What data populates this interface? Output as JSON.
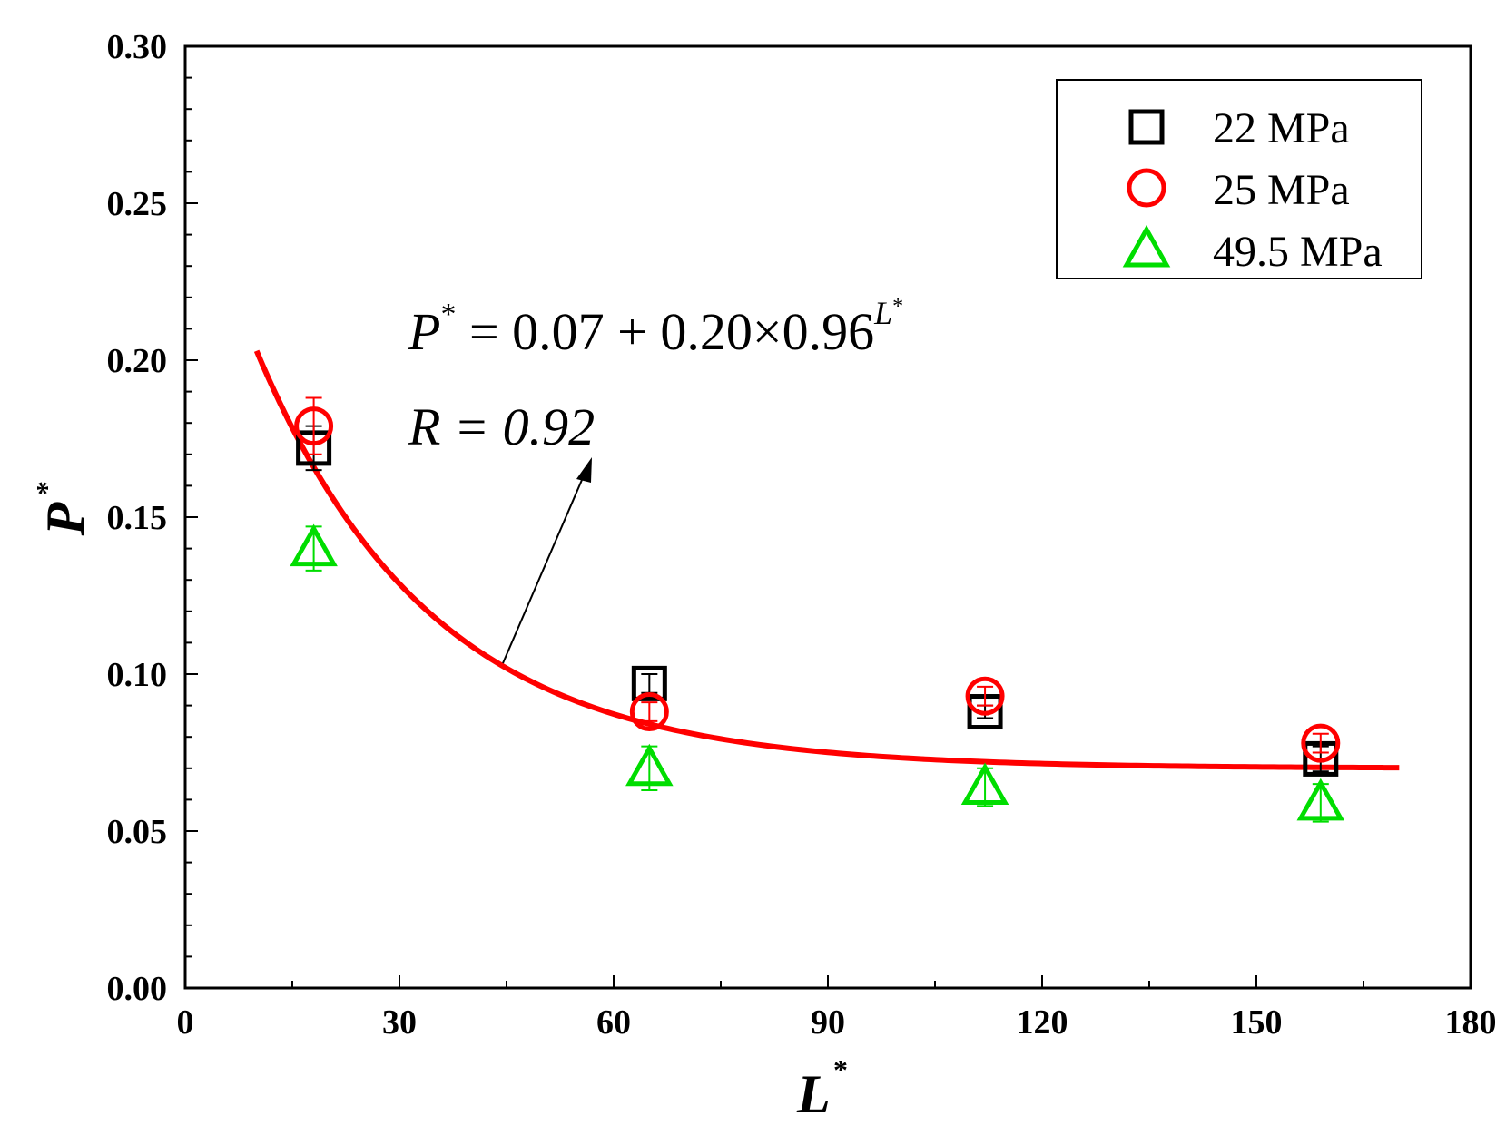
{
  "chart_data": {
    "type": "scatter",
    "xlabel": "L",
    "xlabel_sup": "*",
    "ylabel": "P",
    "ylabel_sup": "*",
    "xlim": [
      0,
      180
    ],
    "ylim": [
      0,
      0.3
    ],
    "x_ticks": [
      "0",
      "30",
      "60",
      "90",
      "120",
      "150",
      "180"
    ],
    "y_ticks": [
      "0.00",
      "0.05",
      "0.10",
      "0.15",
      "0.20",
      "0.25",
      "0.30"
    ],
    "legend_position": "top-right",
    "series": [
      {
        "name": "22 MPa",
        "marker": "square",
        "color": "#000000",
        "points": [
          {
            "x": 18,
            "y": 0.172,
            "err": 0.007
          },
          {
            "x": 65,
            "y": 0.097,
            "err": 0.003
          },
          {
            "x": 112,
            "y": 0.088,
            "err": 0.002
          },
          {
            "x": 159,
            "y": 0.073,
            "err": 0.004
          }
        ]
      },
      {
        "name": "25 MPa",
        "marker": "circle",
        "color": "#ff0000",
        "points": [
          {
            "x": 18,
            "y": 0.179,
            "err": 0.009
          },
          {
            "x": 65,
            "y": 0.088,
            "err": 0.003
          },
          {
            "x": 112,
            "y": 0.093,
            "err": 0.003
          },
          {
            "x": 159,
            "y": 0.078,
            "err": 0.003
          }
        ]
      },
      {
        "name": "49.5 MPa",
        "marker": "triangle",
        "color": "#00dd00",
        "points": [
          {
            "x": 18,
            "y": 0.14,
            "err": 0.007
          },
          {
            "x": 65,
            "y": 0.07,
            "err": 0.007
          },
          {
            "x": 112,
            "y": 0.064,
            "err": 0.006
          },
          {
            "x": 159,
            "y": 0.059,
            "err": 0.006
          }
        ]
      }
    ],
    "fit": {
      "color": "#ff0000",
      "a": 0.07,
      "b": 0.2,
      "c": 0.96,
      "x_range": [
        10,
        170
      ]
    },
    "annotation": {
      "equation_lhs": "P",
      "equation_lhs_sup": "*",
      "equation_rhs": " = 0.07 + 0.20×0.96",
      "equation_exp": "L",
      "equation_exp_sup": "*",
      "r_text": "R = 0.92"
    }
  }
}
